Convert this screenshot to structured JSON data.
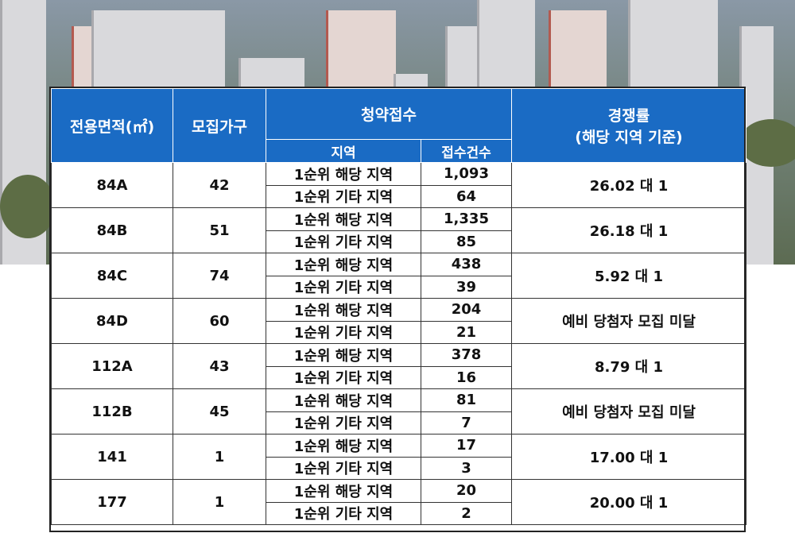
{
  "header": {
    "area": "전용면적(㎡)",
    "households": "모집가구",
    "subscription": "청약접수",
    "region": "지역",
    "count": "접수건수",
    "competition_line1": "경쟁률",
    "competition_line2": "(해당 지역 기준)"
  },
  "rows": [
    {
      "type": "84A",
      "households": "42",
      "local_label": "1순위 해당 지역",
      "local": "1,093",
      "other_label": "1순위 기타 지역",
      "other": "64",
      "rate": "26.02 대 1"
    },
    {
      "type": "84B",
      "households": "51",
      "local_label": "1순위 해당 지역",
      "local": "1,335",
      "other_label": "1순위 기타 지역",
      "other": "85",
      "rate": "26.18 대 1"
    },
    {
      "type": "84C",
      "households": "74",
      "local_label": "1순위 해당 지역",
      "local": "438",
      "other_label": "1순위 기타 지역",
      "other": "39",
      "rate": "5.92 대 1"
    },
    {
      "type": "84D",
      "households": "60",
      "local_label": "1순위 해당 지역",
      "local": "204",
      "other_label": "1순위 기타 지역",
      "other": "21",
      "rate": "예비 당첨자 모집 미달"
    },
    {
      "type": "112A",
      "households": "43",
      "local_label": "1순위 해당 지역",
      "local": "378",
      "other_label": "1순위 기타 지역",
      "other": "16",
      "rate": "8.79 대 1"
    },
    {
      "type": "112B",
      "households": "45",
      "local_label": "1순위 해당 지역",
      "local": "81",
      "other_label": "1순위 기타 지역",
      "other": "7",
      "rate": "예비 당첨자 모집 미달"
    },
    {
      "type": "141",
      "households": "1",
      "local_label": "1순위 해당 지역",
      "local": "17",
      "other_label": "1순위 기타 지역",
      "other": "3",
      "rate": "17.00 대 1"
    },
    {
      "type": "177",
      "households": "1",
      "local_label": "1순위 해당 지역",
      "local": "20",
      "other_label": "1순위 기타 지역",
      "other": "2",
      "rate": "20.00 대 1"
    }
  ]
}
